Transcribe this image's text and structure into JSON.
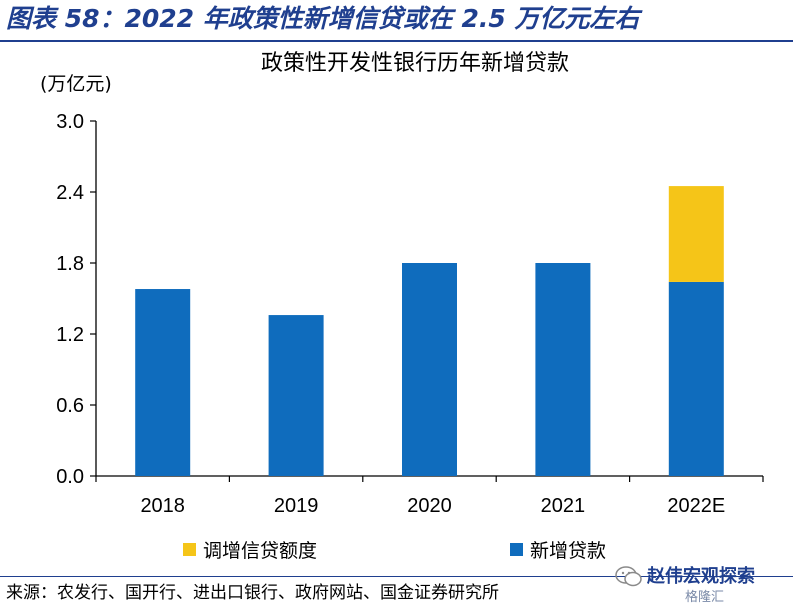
{
  "figure_title": "图表 58：2022 年政策性新增信贷或在 2.5 万亿元左右",
  "source_note": "来源：农发行、国开行、进出口银行、政府网站、国金证券研究所",
  "watermark": {
    "text": "赵伟宏观探索",
    "sub": "格隆汇"
  },
  "colors": {
    "title": "#1f3f8f",
    "series_new_loans": "#0f6cbd",
    "series_adjust": "#f5c518"
  },
  "chart_data": {
    "type": "bar",
    "stacked": true,
    "title": "政策性开发性银行历年新增贷款",
    "ylabel": "(万亿元)",
    "xlabel": "",
    "categories": [
      "2018",
      "2019",
      "2020",
      "2021",
      "2022E"
    ],
    "ylim": [
      0,
      3.0
    ],
    "yticks": [
      "0.0",
      "0.6",
      "1.2",
      "1.8",
      "2.4",
      "3.0"
    ],
    "series": [
      {
        "name": "新增贷款",
        "color": "#0f6cbd",
        "values": [
          1.58,
          1.36,
          1.8,
          1.8,
          1.64
        ]
      },
      {
        "name": "调增信贷额度",
        "color": "#f5c518",
        "values": [
          0,
          0,
          0,
          0,
          0.81
        ]
      }
    ],
    "legend": {
      "position": "bottom",
      "order": [
        "调增信贷额度",
        "新增贷款"
      ]
    },
    "grid": false
  }
}
